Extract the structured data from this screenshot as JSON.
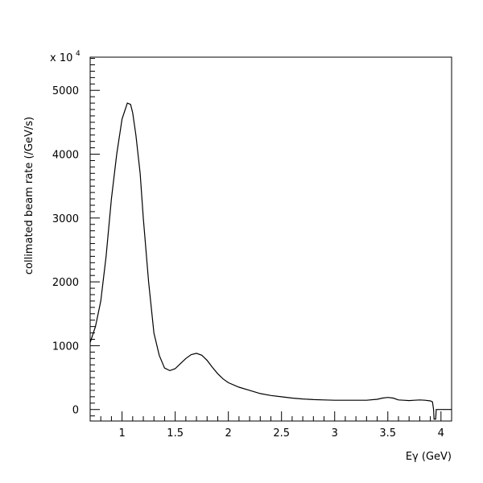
{
  "chart_data": {
    "type": "line",
    "xlabel": "Eγ (GeV)",
    "ylabel": "collimated beam rate (/GeV/s)",
    "y_multiplier_label": "x 10",
    "y_multiplier_exponent": "4",
    "xlim": [
      0.7,
      4.1
    ],
    "ylim": [
      -180,
      5520
    ],
    "x_ticks": [
      1,
      1.5,
      2,
      2.5,
      3,
      3.5,
      4
    ],
    "x_tick_labels": [
      "1",
      "1.5",
      "2",
      "2.5",
      "3",
      "3.5",
      "4"
    ],
    "y_ticks": [
      0,
      1000,
      2000,
      3000,
      4000,
      5000
    ],
    "y_tick_labels": [
      "0",
      "1000",
      "2000",
      "3000",
      "4000",
      "5000"
    ],
    "grid": false,
    "series": [
      {
        "x": [
          0.7,
          0.75,
          0.8,
          0.85,
          0.9,
          0.95,
          1.0,
          1.05,
          1.08,
          1.1,
          1.13,
          1.17,
          1.2,
          1.25,
          1.3,
          1.35,
          1.4,
          1.45,
          1.5,
          1.55,
          1.6,
          1.65,
          1.7,
          1.75,
          1.8,
          1.85,
          1.9,
          1.95,
          2.0,
          2.1,
          2.2,
          2.3,
          2.4,
          2.5,
          2.6,
          2.7,
          2.8,
          2.9,
          3.0,
          3.1,
          3.2,
          3.3,
          3.4,
          3.45,
          3.5,
          3.55,
          3.6,
          3.65,
          3.7,
          3.75,
          3.8,
          3.85,
          3.9,
          3.92,
          3.93,
          3.935,
          3.94,
          3.95,
          3.955,
          3.96,
          4.1
        ],
        "y": [
          1050,
          1300,
          1700,
          2400,
          3300,
          4000,
          4550,
          4800,
          4780,
          4650,
          4300,
          3700,
          3000,
          2000,
          1200,
          850,
          650,
          610,
          640,
          720,
          800,
          860,
          880,
          850,
          770,
          660,
          560,
          480,
          420,
          350,
          300,
          250,
          220,
          200,
          180,
          165,
          155,
          150,
          145,
          145,
          145,
          145,
          160,
          180,
          190,
          180,
          150,
          145,
          140,
          145,
          150,
          145,
          135,
          120,
          0,
          -150,
          -150,
          -150,
          0,
          0,
          0
        ]
      }
    ]
  }
}
